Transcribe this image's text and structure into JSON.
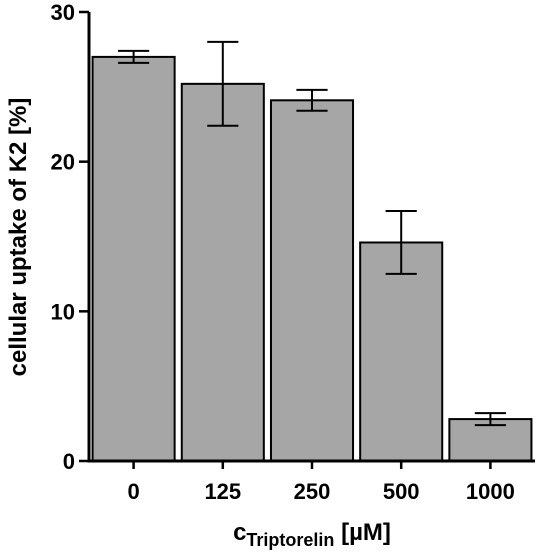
{
  "chart_data": {
    "type": "bar",
    "title": "",
    "xlabel_main": "c",
    "xlabel_sub": "Triptorelin",
    "xlabel_unit": " [µM]",
    "ylabel": "cellular uptake of K2 [%]",
    "categories": [
      "0",
      "125",
      "250",
      "500",
      "1000"
    ],
    "values": [
      27.0,
      25.2,
      24.1,
      14.6,
      2.8
    ],
    "error": [
      0.4,
      2.8,
      0.7,
      2.1,
      0.4
    ],
    "ylim": [
      0,
      30
    ],
    "yticks": [
      "0",
      "10",
      "20",
      "30"
    ],
    "bar_color": "#a6a6a6",
    "grid": false,
    "legend": "none"
  }
}
